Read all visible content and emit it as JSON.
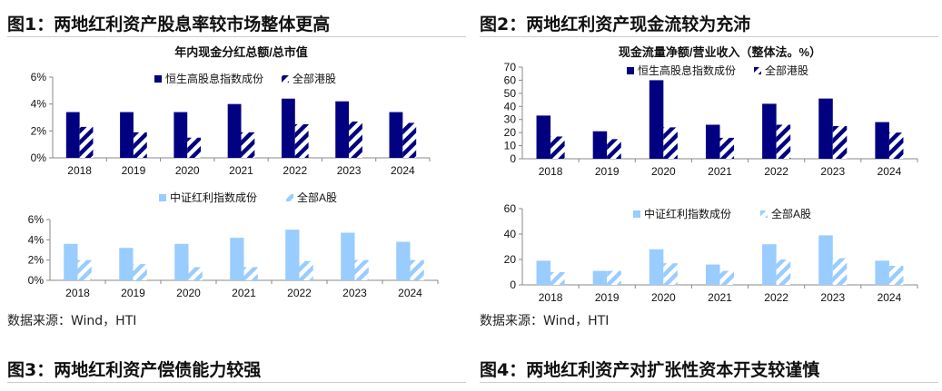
{
  "figures": [
    {
      "title": "图1：两地红利资产股息率较市场整体更高",
      "source": "数据来源：Wind，HTI"
    },
    {
      "title": "图2：两地红利资产现金流较为充沛",
      "source": "数据来源：Wind，HTI"
    },
    {
      "title": "图3：两地红利资产偿债能力较强"
    },
    {
      "title": "图4：两地红利资产对扩张性资本开支较谨慎"
    }
  ],
  "colors": {
    "dark_blue": "#000080",
    "light_blue": "#99ccff"
  },
  "chart_data": [
    {
      "type": "bar",
      "title": "年内现金分红总额/总市值",
      "categories": [
        "2018",
        "2019",
        "2020",
        "2021",
        "2022",
        "2023",
        "2024"
      ],
      "yticks": [
        "0%",
        "2%",
        "4%",
        "6%"
      ],
      "ylim": [
        0,
        6
      ],
      "unit": "%",
      "legend": "top-center",
      "series": [
        {
          "name": "恒生高股息指数成份",
          "values": [
            3.4,
            3.4,
            3.4,
            4.0,
            4.4,
            4.2,
            3.4
          ],
          "color": "#000080",
          "style": "solid"
        },
        {
          "name": "全部港股",
          "values": [
            2.3,
            1.9,
            1.5,
            1.9,
            2.5,
            2.7,
            2.6
          ],
          "color": "#000080",
          "style": "hatched"
        }
      ]
    },
    {
      "type": "bar",
      "title": "",
      "categories": [
        "2018",
        "2019",
        "2020",
        "2021",
        "2022",
        "2023",
        "2024"
      ],
      "yticks": [
        "0%",
        "2%",
        "4%",
        "6%"
      ],
      "ylim": [
        0,
        6
      ],
      "unit": "%",
      "legend": "top-center",
      "series": [
        {
          "name": "中证红利指数成份",
          "values": [
            3.6,
            3.2,
            3.6,
            4.2,
            5.0,
            4.7,
            3.8
          ],
          "color": "#99ccff",
          "style": "solid"
        },
        {
          "name": "全部A股",
          "values": [
            2.0,
            1.6,
            1.3,
            1.3,
            1.9,
            2.0,
            2.0
          ],
          "color": "#99ccff",
          "style": "hatched"
        }
      ]
    },
    {
      "type": "bar",
      "title": "现金流量净额/营业收入（整体法。%）",
      "categories": [
        "2018",
        "2019",
        "2020",
        "2021",
        "2022",
        "2023",
        "2024"
      ],
      "yticks": [
        "0",
        "10",
        "20",
        "30",
        "40",
        "50",
        "60",
        "70"
      ],
      "ylim": [
        0,
        70
      ],
      "legend": "top-center",
      "series": [
        {
          "name": "恒生高股息指数成份",
          "values": [
            33,
            21,
            60,
            26,
            42,
            46,
            28
          ],
          "color": "#000080",
          "style": "solid"
        },
        {
          "name": "全部港股",
          "values": [
            17,
            15,
            24,
            16,
            26,
            25,
            20
          ],
          "color": "#000080",
          "style": "hatched"
        }
      ]
    },
    {
      "type": "bar",
      "title": "",
      "categories": [
        "2018",
        "2019",
        "2020",
        "2021",
        "2022",
        "2023",
        "2024"
      ],
      "yticks": [
        "0",
        "20",
        "40",
        "60"
      ],
      "ylim": [
        0,
        60
      ],
      "legend": "top-center",
      "series": [
        {
          "name": "中证红利指数成份",
          "values": [
            19,
            11,
            28,
            16,
            32,
            39,
            19
          ],
          "color": "#99ccff",
          "style": "solid"
        },
        {
          "name": "全部A股",
          "values": [
            10,
            11,
            17,
            11,
            20,
            21,
            15
          ],
          "color": "#99ccff",
          "style": "hatched"
        }
      ]
    }
  ]
}
